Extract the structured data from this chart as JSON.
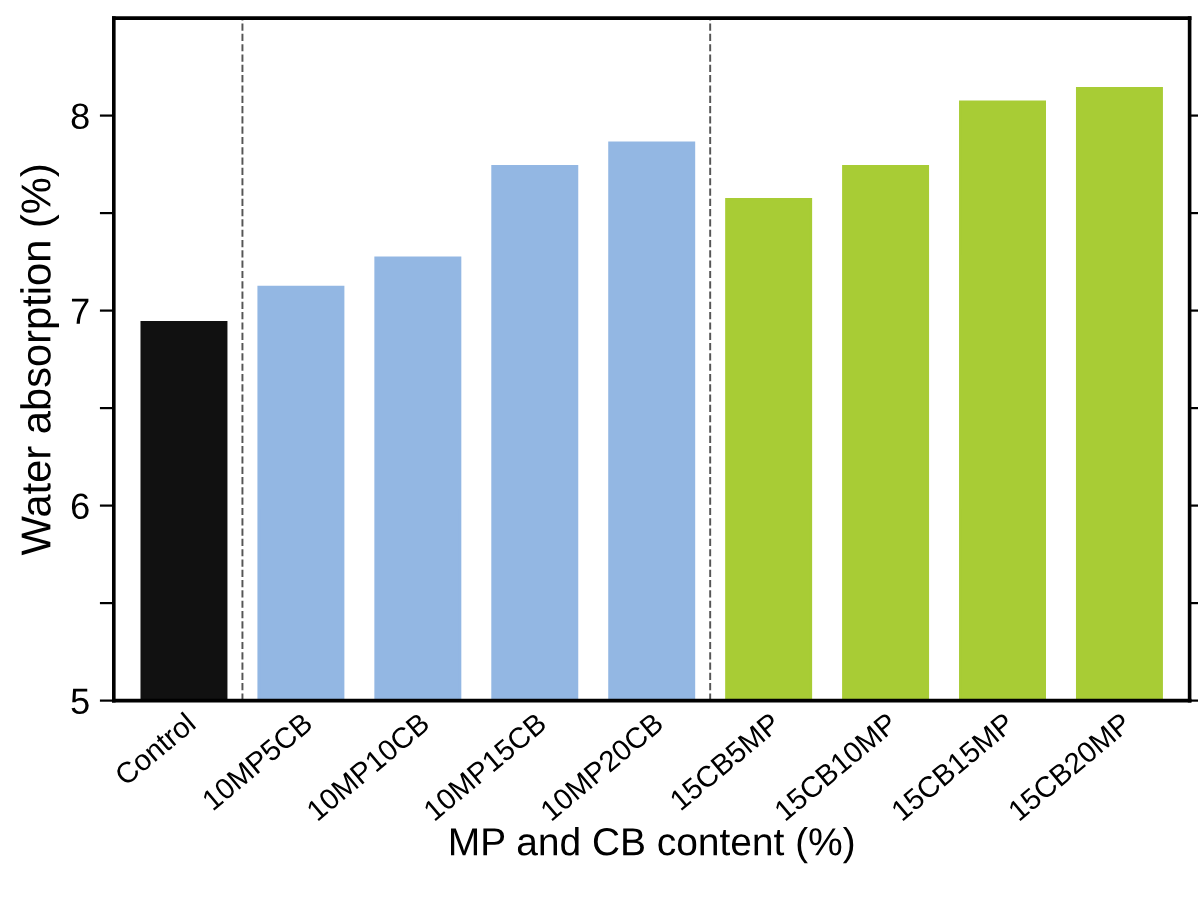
{
  "chart_data": {
    "type": "bar",
    "xlabel": "MP and CB content (%)",
    "ylabel": "Water absorption (%)",
    "categories": [
      "Control",
      "10MP5CB",
      "10MP10CB",
      "10MP15CB",
      "10MP20CB",
      "15CB5MP",
      "15CB10MP",
      "15CB15MP",
      "15CB20MP"
    ],
    "values": [
      6.94,
      7.12,
      7.27,
      7.74,
      7.86,
      7.57,
      7.74,
      8.07,
      8.14
    ],
    "colors": [
      "#111111",
      "#93b7e3",
      "#93b7e3",
      "#93b7e3",
      "#93b7e3",
      "#a8cc35",
      "#a8cc35",
      "#a8cc35",
      "#a8cc35"
    ],
    "ylim": [
      5,
      8.5
    ],
    "yticks": [
      5,
      {
        "value": 5.5,
        "label": null
      },
      6,
      {
        "value": 6.5,
        "label": null
      },
      7,
      {
        "value": 7.5,
        "label": null
      },
      8
    ],
    "grid": false
  }
}
